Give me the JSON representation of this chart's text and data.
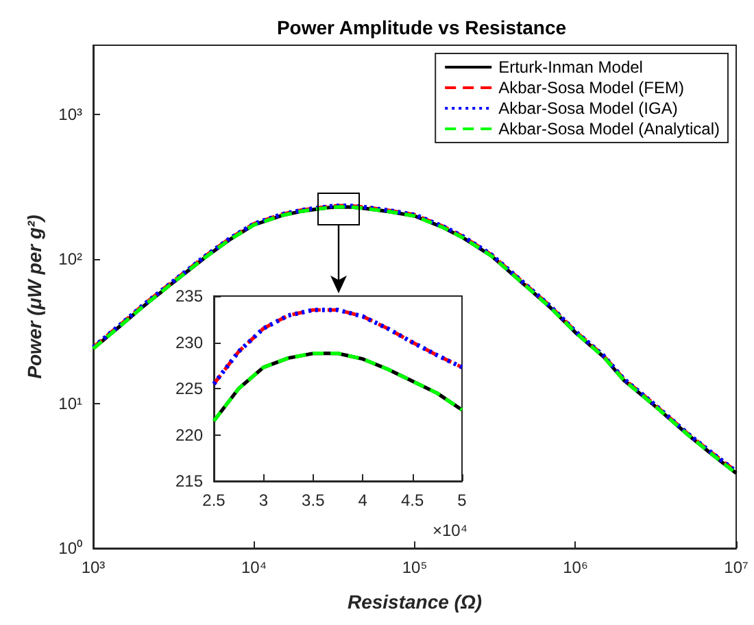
{
  "chart_data": [
    {
      "type": "line",
      "title": "Power Amplitude vs Resistance",
      "xlabel": "Resistance (Ω)",
      "ylabel": "Power (μW per g²)",
      "log": "xy",
      "grid": false,
      "legend": "top right",
      "xlim": [
        1000,
        10000000
      ],
      "xticks": [
        {
          "value": 1000,
          "label": "10³"
        },
        {
          "value": 10000,
          "label": "10⁴"
        },
        {
          "value": 100000,
          "label": "10⁵"
        },
        {
          "value": 1000000,
          "label": "10⁶"
        },
        {
          "value": 10000000,
          "label": "10⁷"
        }
      ],
      "ylim": [
        1,
        3000
      ],
      "yticks": [
        {
          "value": 1,
          "label": "10⁰"
        },
        {
          "value": 10,
          "label": "10¹"
        },
        {
          "value": 100,
          "label": "10²"
        },
        {
          "value": 1000,
          "label": "10³"
        }
      ],
      "x": [
        1000,
        1500,
        2000,
        3000,
        5000,
        7000,
        10000,
        15000,
        20000,
        25000,
        30000,
        35000,
        40000,
        45000,
        50000,
        70000,
        100000,
        150000,
        200000,
        300000,
        500000,
        700000,
        1000000,
        1500000,
        2000000,
        3000000,
        5000000,
        7000000,
        10000000
      ],
      "series": [
        {
          "name": "Erturk-Inman Model",
          "color": "#000000",
          "line_style": "solid",
          "values": [
            24,
            35,
            46,
            66,
            103,
            135,
            172,
            200,
            214,
            221.5,
            227.3,
            228.8,
            228.2,
            225.8,
            222.7,
            212,
            198,
            165,
            140,
            105,
            64,
            46,
            31,
            21,
            14.5,
            10,
            6.1,
            4.5,
            3.3
          ]
        },
        {
          "name": "Akbar-Sosa Model (FEM)",
          "color": "#ff0000",
          "line_style": "dashed",
          "values": [
            24.5,
            35.7,
            47,
            67.3,
            105,
            137.5,
            175,
            204,
            218,
            225.5,
            231.5,
            233.5,
            232.8,
            230,
            227.3,
            216,
            202,
            168,
            143,
            107,
            65.3,
            47,
            31.6,
            21.4,
            14.8,
            10.2,
            6.2,
            4.6,
            3.4
          ]
        },
        {
          "name": "Akbar-Sosa Model (IGA)",
          "color": "#0000ff",
          "line_style": "dotted",
          "values": [
            24.5,
            35.7,
            47,
            67.3,
            105,
            137.5,
            175,
            204,
            218,
            225.5,
            231.5,
            233.5,
            232.8,
            230,
            227.3,
            216,
            202,
            168,
            143,
            107,
            65.3,
            47,
            31.6,
            21.4,
            14.8,
            10.2,
            6.2,
            4.6,
            3.4
          ]
        },
        {
          "name": "Akbar-Sosa Model (Analytical)",
          "color": "#00ff00",
          "line_style": "dashed",
          "values": [
            24,
            35,
            46,
            66,
            103,
            135,
            172,
            200,
            214,
            221.5,
            227.3,
            228.8,
            228.2,
            225.8,
            222.7,
            212,
            198,
            165,
            140,
            105,
            64,
            46,
            31,
            21,
            14.5,
            10,
            6.1,
            4.5,
            3.3
          ]
        }
      ]
    },
    {
      "type": "line",
      "grid": false,
      "annotations": [
        "×10⁴"
      ],
      "xlim": [
        2.5,
        5
      ],
      "xticks": [
        2.5,
        3,
        3.5,
        4,
        4.5,
        5
      ],
      "ylim": [
        215,
        235
      ],
      "yticks": [
        215,
        220,
        225,
        230,
        235
      ],
      "x": [
        2.5,
        2.75,
        3,
        3.25,
        3.5,
        3.75,
        4,
        4.25,
        4.5,
        4.75,
        5
      ],
      "series": [
        {
          "color": "#000000",
          "line_style": "solid",
          "values": [
            221.5,
            225,
            227.3,
            228.3,
            228.8,
            228.8,
            228.2,
            227.1,
            225.8,
            224.5,
            222.7
          ]
        },
        {
          "color": "#ff0000",
          "line_style": "dashed",
          "values": [
            225.5,
            229,
            231.5,
            232.9,
            233.5,
            233.5,
            232.8,
            231.5,
            230,
            228.6,
            227.3
          ]
        },
        {
          "color": "#0000ff",
          "line_style": "dotted",
          "values": [
            225.5,
            229,
            231.5,
            232.9,
            233.5,
            233.5,
            232.8,
            231.5,
            230,
            228.6,
            227.3
          ]
        },
        {
          "color": "#00ff00",
          "line_style": "dashed",
          "values": [
            221.5,
            225,
            227.3,
            228.3,
            228.8,
            228.8,
            228.2,
            227.1,
            225.8,
            224.5,
            222.7
          ]
        }
      ]
    }
  ]
}
